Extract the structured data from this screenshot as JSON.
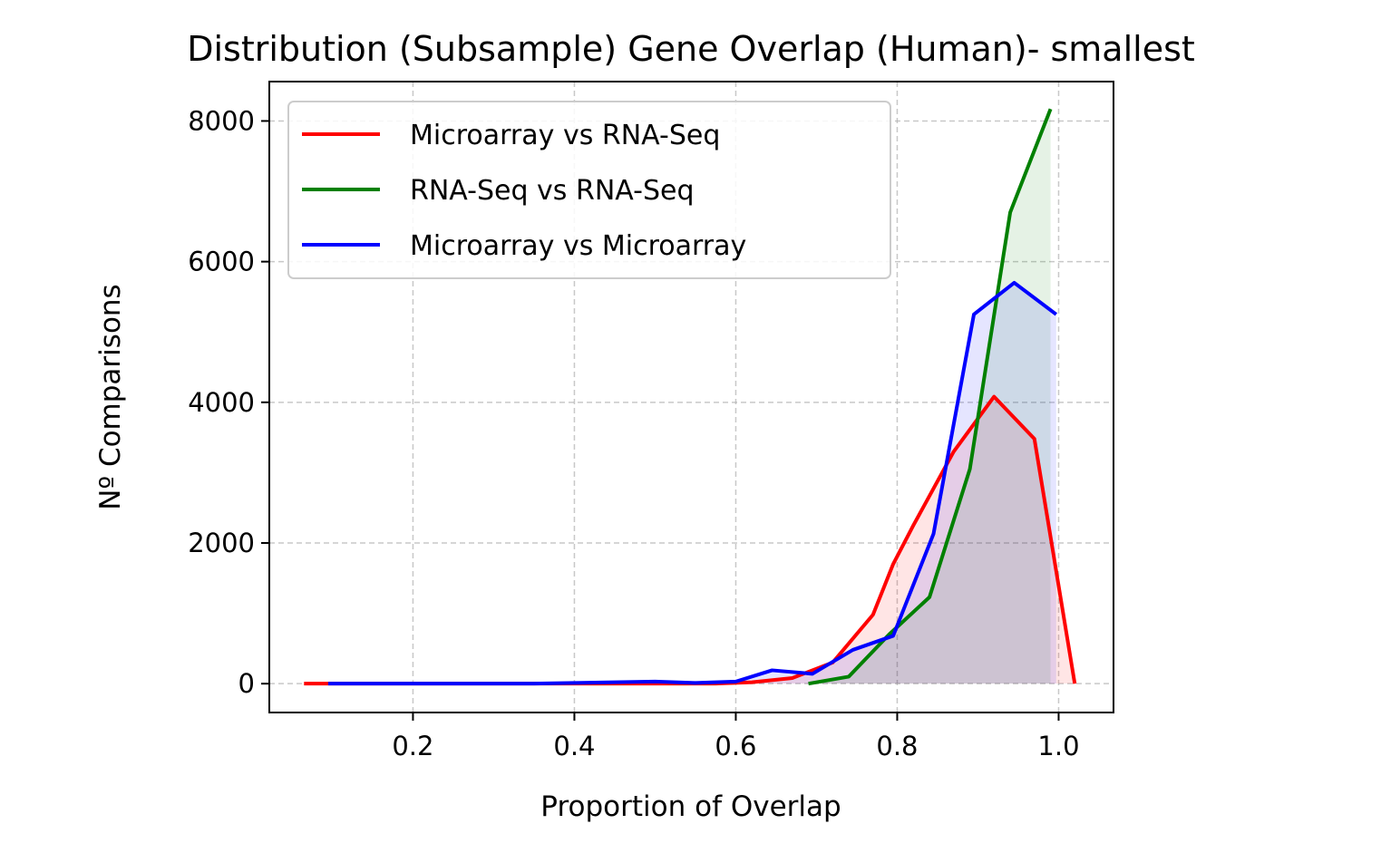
{
  "chart_data": {
    "type": "line",
    "title": "Distribution (Subsample) Gene Overlap (Human)- smallest",
    "xlabel": "Proportion of Overlap",
    "ylabel": "Nº Comparisons",
    "xlim": [
      0.022,
      1.068
    ],
    "ylim": [
      -410,
      8560
    ],
    "xticks": [
      0.2,
      0.4,
      0.6,
      0.8,
      1.0
    ],
    "xtick_labels": [
      "0.2",
      "0.4",
      "0.6",
      "0.8",
      "1.0"
    ],
    "yticks": [
      0,
      2000,
      4000,
      6000,
      8000
    ],
    "ytick_labels": [
      "0",
      "2000",
      "4000",
      "6000",
      "8000"
    ],
    "grid": true,
    "legend_position": "upper left",
    "series": [
      {
        "name": "Microarray vs RNA-Seq",
        "color": "#ff0000",
        "x": [
          0.065,
          0.09,
          0.2,
          0.3,
          0.4,
          0.5,
          0.575,
          0.62,
          0.67,
          0.72,
          0.77,
          0.795,
          0.82,
          0.87,
          0.92,
          0.97,
          1.02
        ],
        "y": [
          0,
          0,
          0,
          0,
          0,
          0,
          0,
          20,
          80,
          300,
          980,
          1700,
          2250,
          3300,
          4080,
          3480,
          0
        ]
      },
      {
        "name": "RNA-Seq vs RNA-Seq",
        "color": "#008000",
        "x": [
          0.69,
          0.74,
          0.79,
          0.84,
          0.89,
          0.94,
          0.99
        ],
        "y": [
          0,
          100,
          700,
          1230,
          3050,
          6700,
          8170
        ]
      },
      {
        "name": "Microarray vs Microarray",
        "color": "#0000ff",
        "x": [
          0.095,
          0.15,
          0.2,
          0.25,
          0.3,
          0.35,
          0.4,
          0.45,
          0.5,
          0.55,
          0.6,
          0.645,
          0.695,
          0.745,
          0.795,
          0.845,
          0.895,
          0.945,
          0.997
        ],
        "y": [
          0,
          0,
          0,
          0,
          0,
          0,
          10,
          20,
          30,
          10,
          30,
          190,
          140,
          480,
          680,
          2130,
          5250,
          5700,
          5250
        ]
      }
    ]
  }
}
